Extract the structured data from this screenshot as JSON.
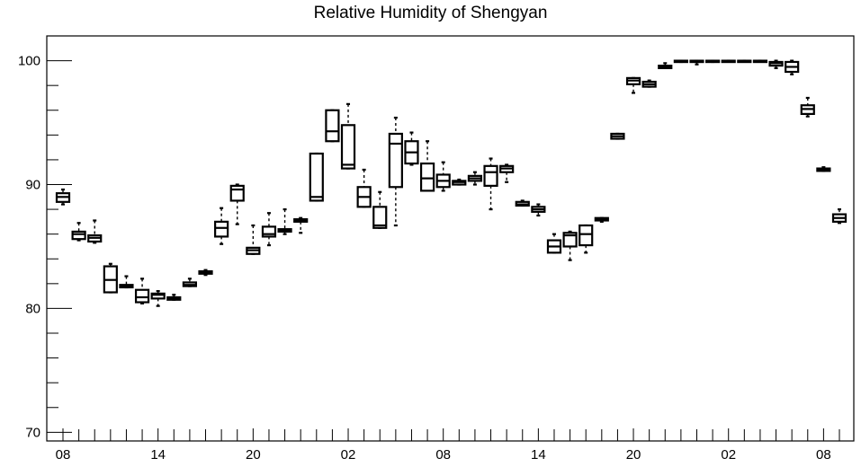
{
  "chart_data": {
    "type": "box",
    "title": "Relative Humidity of Shengyan",
    "xlabel": "",
    "ylabel": "",
    "ylim": [
      69.3,
      102
    ],
    "yticks": [
      70,
      80,
      90,
      100
    ],
    "x_tick_labels": [
      {
        "index": 0,
        "label": "08"
      },
      {
        "index": 6,
        "label": "14"
      },
      {
        "index": 12,
        "label": "20"
      },
      {
        "index": 18,
        "label": "02"
      },
      {
        "index": 24,
        "label": "08"
      },
      {
        "index": 30,
        "label": "14"
      },
      {
        "index": 36,
        "label": "20"
      },
      {
        "index": 42,
        "label": "02"
      },
      {
        "index": 48,
        "label": "08"
      }
    ],
    "boxes": [
      {
        "i": 0,
        "min": 88.4,
        "q1": 88.6,
        "median": 89.0,
        "q3": 89.3,
        "max": 89.6
      },
      {
        "i": 1,
        "min": 85.5,
        "q1": 85.6,
        "median": 86.0,
        "q3": 86.2,
        "max": 86.9
      },
      {
        "i": 2,
        "min": 85.3,
        "q1": 85.4,
        "median": 85.7,
        "q3": 85.9,
        "max": 87.1
      },
      {
        "i": 3,
        "min": 81.3,
        "q1": 81.3,
        "median": 82.3,
        "q3": 83.4,
        "max": 83.6
      },
      {
        "i": 4,
        "min": 81.7,
        "q1": 81.7,
        "median": 81.8,
        "q3": 81.9,
        "max": 82.6
      },
      {
        "i": 5,
        "min": 80.4,
        "q1": 80.5,
        "median": 80.9,
        "q3": 81.5,
        "max": 82.4
      },
      {
        "i": 6,
        "min": 80.2,
        "q1": 80.8,
        "median": 81.1,
        "q3": 81.2,
        "max": 81.4
      },
      {
        "i": 7,
        "min": 80.7,
        "q1": 80.7,
        "median": 80.8,
        "q3": 80.9,
        "max": 81.1
      },
      {
        "i": 8,
        "min": 81.8,
        "q1": 81.8,
        "median": 81.9,
        "q3": 82.1,
        "max": 82.4
      },
      {
        "i": 9,
        "min": 82.7,
        "q1": 82.8,
        "median": 82.9,
        "q3": 83.0,
        "max": 83.1
      },
      {
        "i": 10,
        "min": 85.2,
        "q1": 85.8,
        "median": 86.5,
        "q3": 87.0,
        "max": 88.1
      },
      {
        "i": 11,
        "min": 86.8,
        "q1": 88.7,
        "median": 89.6,
        "q3": 89.9,
        "max": 90.0
      },
      {
        "i": 12,
        "min": 84.4,
        "q1": 84.4,
        "median": 84.7,
        "q3": 84.9,
        "max": 86.7
      },
      {
        "i": 13,
        "min": 85.1,
        "q1": 85.8,
        "median": 86.0,
        "q3": 86.6,
        "max": 87.7
      },
      {
        "i": 14,
        "min": 86.0,
        "q1": 86.2,
        "median": 86.3,
        "q3": 86.4,
        "max": 88.0
      },
      {
        "i": 15,
        "min": 86.1,
        "q1": 87.0,
        "median": 87.1,
        "q3": 87.2,
        "max": 87.3
      },
      {
        "i": 16,
        "min": 88.7,
        "q1": 88.7,
        "median": 89.0,
        "q3": 92.5,
        "max": 92.5
      },
      {
        "i": 17,
        "min": 93.5,
        "q1": 93.5,
        "median": 94.3,
        "q3": 96.0,
        "max": 96.0
      },
      {
        "i": 18,
        "min": 91.3,
        "q1": 91.3,
        "median": 91.6,
        "q3": 94.8,
        "max": 96.5
      },
      {
        "i": 19,
        "min": 88.2,
        "q1": 88.2,
        "median": 89.0,
        "q3": 89.8,
        "max": 91.2
      },
      {
        "i": 20,
        "min": 86.5,
        "q1": 86.5,
        "median": 86.7,
        "q3": 88.2,
        "max": 89.4
      },
      {
        "i": 21,
        "min": 86.7,
        "q1": 89.8,
        "median": 93.3,
        "q3": 94.1,
        "max": 95.4
      },
      {
        "i": 22,
        "min": 91.6,
        "q1": 91.7,
        "median": 92.6,
        "q3": 93.5,
        "max": 94.2
      },
      {
        "i": 23,
        "min": 89.5,
        "q1": 89.5,
        "median": 90.5,
        "q3": 91.7,
        "max": 93.5
      },
      {
        "i": 24,
        "min": 89.5,
        "q1": 89.8,
        "median": 90.3,
        "q3": 90.8,
        "max": 91.8
      },
      {
        "i": 25,
        "min": 90.0,
        "q1": 90.0,
        "median": 90.2,
        "q3": 90.3,
        "max": 90.4
      },
      {
        "i": 26,
        "min": 90.0,
        "q1": 90.3,
        "median": 90.5,
        "q3": 90.7,
        "max": 91.0
      },
      {
        "i": 27,
        "min": 88.0,
        "q1": 89.9,
        "median": 91.0,
        "q3": 91.5,
        "max": 92.1
      },
      {
        "i": 28,
        "min": 90.2,
        "q1": 91.0,
        "median": 91.3,
        "q3": 91.5,
        "max": 91.6
      },
      {
        "i": 29,
        "min": 88.3,
        "q1": 88.3,
        "median": 88.4,
        "q3": 88.6,
        "max": 88.7
      },
      {
        "i": 30,
        "min": 87.5,
        "q1": 87.8,
        "median": 88.0,
        "q3": 88.2,
        "max": 88.4
      },
      {
        "i": 31,
        "min": 84.5,
        "q1": 84.5,
        "median": 85.0,
        "q3": 85.5,
        "max": 86.0
      },
      {
        "i": 32,
        "min": 83.9,
        "q1": 85.0,
        "median": 85.9,
        "q3": 86.1,
        "max": 86.2
      },
      {
        "i": 33,
        "min": 84.5,
        "q1": 85.1,
        "median": 86.0,
        "q3": 86.7,
        "max": 86.7
      },
      {
        "i": 34,
        "min": 87.0,
        "q1": 87.1,
        "median": 87.2,
        "q3": 87.3,
        "max": 87.3
      },
      {
        "i": 35,
        "min": 93.7,
        "q1": 93.7,
        "median": 93.9,
        "q3": 94.1,
        "max": 94.1
      },
      {
        "i": 36,
        "min": 97.4,
        "q1": 98.1,
        "median": 98.4,
        "q3": 98.6,
        "max": 98.6
      },
      {
        "i": 37,
        "min": 97.9,
        "q1": 97.9,
        "median": 98.1,
        "q3": 98.3,
        "max": 98.4
      },
      {
        "i": 38,
        "min": 99.4,
        "q1": 99.4,
        "median": 99.5,
        "q3": 99.6,
        "max": 99.8
      },
      {
        "i": 39,
        "min": 99.9,
        "q1": 100.0,
        "median": 100.0,
        "q3": 100.0,
        "max": 100.0
      },
      {
        "i": 40,
        "min": 99.7,
        "q1": 99.9,
        "median": 100.0,
        "q3": 100.0,
        "max": 100.0
      },
      {
        "i": 41,
        "min": 99.9,
        "q1": 100.0,
        "median": 100.0,
        "q3": 100.0,
        "max": 100.0
      },
      {
        "i": 42,
        "min": 100.0,
        "q1": 100.0,
        "median": 100.0,
        "q3": 100.0,
        "max": 100.0
      },
      {
        "i": 43,
        "min": 100.0,
        "q1": 100.0,
        "median": 100.0,
        "q3": 100.0,
        "max": 100.0
      },
      {
        "i": 44,
        "min": 100.0,
        "q1": 100.0,
        "median": 100.0,
        "q3": 100.0,
        "max": 100.0
      },
      {
        "i": 45,
        "min": 99.4,
        "q1": 99.6,
        "median": 99.8,
        "q3": 99.9,
        "max": 100.0
      },
      {
        "i": 46,
        "min": 98.9,
        "q1": 99.1,
        "median": 99.5,
        "q3": 99.9,
        "max": 100.0
      },
      {
        "i": 47,
        "min": 95.5,
        "q1": 95.7,
        "median": 96.1,
        "q3": 96.4,
        "max": 97.0
      },
      {
        "i": 48,
        "min": 91.1,
        "q1": 91.1,
        "median": 91.2,
        "q3": 91.3,
        "max": 91.4
      },
      {
        "i": 49,
        "min": 86.9,
        "q1": 87.0,
        "median": 87.3,
        "q3": 87.6,
        "max": 88.0
      }
    ],
    "grid": false,
    "colors": {
      "box": "#000000",
      "axis": "#000000",
      "background": "#ffffff"
    }
  }
}
